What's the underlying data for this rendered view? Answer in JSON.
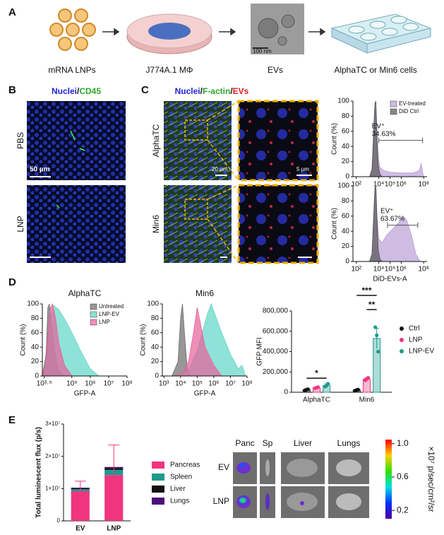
{
  "figure": {
    "panel_labels": [
      "A",
      "B",
      "C",
      "D",
      "E"
    ],
    "workflow": {
      "steps": [
        "mRNA LNPs",
        "J774A.1 MΦ",
        "EVs",
        "AlphaTC or Min6 cells"
      ],
      "em_scale": "100 nm"
    },
    "panel_b": {
      "title": [
        "Nuclei",
        "/",
        "CD45"
      ],
      "rows": [
        "PBS",
        "LNP"
      ],
      "scale": "50 µm"
    },
    "panel_c": {
      "title": [
        "Nuclei",
        "/",
        "F-actin",
        "/",
        "EVs"
      ],
      "rows": [
        "AlphaTC",
        "Min6"
      ],
      "scales": [
        "20 µm",
        "5 µm"
      ]
    },
    "panel_e_images": {
      "columns": [
        "Panc",
        "Sp",
        "Liver",
        "Lungs"
      ],
      "rows": [
        "EV",
        "LNP"
      ]
    },
    "colorbar": {
      "label": "×10⁷ p/sec/cm²/sr",
      "ylim": [
        0.1,
        1.05
      ],
      "ticks": [
        {
          "value": 1,
          "label": "1.0"
        },
        0.6,
        0.2
      ]
    }
  },
  "chart_data": [
    {
      "type": "area",
      "xscale": "log",
      "ylabel": "Count (%)",
      "legend": "upper right",
      "xlim": [
        50,
        200000000
      ],
      "xticks": [
        {
          "value": 100,
          "label": "10²"
        },
        {
          "value": 10000,
          "label": "10⁴"
        },
        {
          "value": 100000,
          "label": "10⁵"
        },
        {
          "value": 1000000,
          "label": "10⁶"
        },
        {
          "value": 100000000,
          "label": "10⁸"
        }
      ],
      "ylim": [
        0,
        100
      ],
      "yticks": [
        0,
        20,
        40,
        60,
        80,
        100
      ],
      "gate": [
        10000,
        80000000
      ],
      "gate_label": "EV⁺",
      "gate_percent": "34.63%",
      "series": [
        {
          "name": "EV-treated",
          "color": "#b9a0d6",
          "x": [
            1500,
            2500,
            3500,
            4500,
            5500,
            7000,
            9000,
            13000,
            30000,
            100000,
            1000000,
            10000000,
            40000000,
            60000000,
            80000000,
            100000000
          ],
          "values": [
            0,
            8,
            50,
            88,
            92,
            60,
            25,
            12,
            8,
            6,
            5,
            5,
            8,
            18,
            6,
            0
          ]
        },
        {
          "name": "DiD Ctrl",
          "color": "#555555",
          "x": [
            1500,
            2500,
            3500,
            4500,
            5500,
            7000,
            9000,
            13000,
            20000
          ],
          "values": [
            0,
            10,
            60,
            97,
            100,
            55,
            15,
            3,
            0
          ]
        }
      ]
    },
    {
      "type": "area",
      "xscale": "log",
      "ylabel": "Count (%)",
      "xlabel": "DiD-EVs-A",
      "xlim": [
        50,
        200000000
      ],
      "xticks": [
        {
          "value": 100,
          "label": "10²"
        },
        {
          "value": 10000,
          "label": "10⁴"
        },
        {
          "value": 100000,
          "label": "10⁵"
        },
        {
          "value": 1000000,
          "label": "10⁶"
        },
        {
          "value": 100000000,
          "label": "10⁸"
        }
      ],
      "ylim": [
        0,
        100
      ],
      "yticks": [
        0,
        20,
        40,
        60,
        80,
        100
      ],
      "gate": [
        60000,
        30000000
      ],
      "gate_label": "EV⁺",
      "gate_percent": "63.67%",
      "series": [
        {
          "name": null,
          "color": "#b9a0d6",
          "x": [
            1500,
            2500,
            3500,
            4500,
            5500,
            7000,
            10000,
            20000,
            50000,
            150000,
            500000,
            1500000,
            3000000,
            8000000,
            20000000,
            50000000
          ],
          "values": [
            0,
            10,
            55,
            95,
            100,
            60,
            30,
            25,
            35,
            42,
            50,
            60,
            55,
            35,
            10,
            0
          ]
        },
        {
          "name": null,
          "color": "#555555",
          "x": [
            1500,
            2500,
            3500,
            4500,
            5500,
            7000,
            9000,
            13000,
            20000
          ],
          "values": [
            0,
            10,
            60,
            97,
            100,
            55,
            15,
            3,
            0
          ]
        }
      ]
    },
    {
      "type": "area",
      "xscale": "log",
      "title": "AlphaTC",
      "ylabel": "Count (%)",
      "xlabel": "GFP-A",
      "legend": "upper right",
      "xlim": [
        2500,
        100000000
      ],
      "xticks": [
        {
          "value": 3162.2776601683795,
          "label": "10³·⁵"
        },
        {
          "value": 100000,
          "label": "10⁵"
        },
        {
          "value": 1000000,
          "label": "10⁶"
        },
        {
          "value": 10000000,
          "label": "10⁷"
        },
        {
          "value": 100000000,
          "label": "10⁸"
        }
      ],
      "ylim": [
        0,
        100
      ],
      "yticks": [
        0,
        20,
        40,
        60,
        80,
        100
      ],
      "series": [
        {
          "name": "Untreated",
          "color": "#6b6b6b",
          "x": [
            2500,
            4000,
            5000,
            6000,
            8000,
            12000,
            20000,
            40000
          ],
          "values": [
            0,
            30,
            95,
            100,
            70,
            30,
            8,
            0
          ]
        },
        {
          "name": "LNP-EV",
          "color": "#5fd6c6",
          "x": [
            3000,
            5000,
            7000,
            10000,
            20000,
            50000,
            100000,
            300000,
            1000000,
            3000000
          ],
          "values": [
            0,
            30,
            80,
            98,
            92,
            75,
            60,
            35,
            10,
            0
          ]
        },
        {
          "name": "LNP",
          "color": "#e8609a",
          "x": [
            2500,
            4000,
            5500,
            7000,
            9000,
            13000,
            20000,
            40000,
            100000
          ],
          "values": [
            0,
            20,
            70,
            95,
            100,
            80,
            45,
            15,
            0
          ]
        }
      ]
    },
    {
      "type": "area",
      "xscale": "log",
      "title": "Min6",
      "ylabel": "Count (%)",
      "xlabel": "GFP-A",
      "xlim": [
        800,
        100000000
      ],
      "xticks": [
        {
          "value": 1000,
          "label": "10³"
        },
        {
          "value": 10000,
          "label": "10⁴"
        },
        {
          "value": 100000,
          "label": "10⁵"
        },
        {
          "value": 1000000,
          "label": "10⁶"
        },
        {
          "value": 10000000,
          "label": "10⁷"
        },
        {
          "value": 100000000,
          "label": "10⁸"
        }
      ],
      "ylim": [
        0,
        100
      ],
      "yticks": [
        0,
        20,
        40,
        60,
        80,
        100
      ],
      "series": [
        {
          "name": null,
          "color": "#6b6b6b",
          "x": [
            3000,
            7000,
            10000,
            13000,
            17000,
            25000,
            40000
          ],
          "values": [
            0,
            20,
            80,
            100,
            60,
            10,
            0
          ]
        },
        {
          "name": null,
          "color": "#5fd6c6",
          "x": [
            8000,
            30000,
            100000,
            200000,
            400000,
            700000,
            1000000,
            3000000,
            10000000,
            30000000,
            50000000,
            80000000
          ],
          "values": [
            0,
            8,
            35,
            60,
            85,
            100,
            90,
            60,
            30,
            10,
            15,
            0
          ]
        },
        {
          "name": null,
          "color": "#e8609a",
          "x": [
            5000,
            15000,
            30000,
            60000,
            100000,
            150000,
            300000,
            1000000,
            3000000
          ],
          "values": [
            0,
            5,
            20,
            60,
            95,
            75,
            40,
            15,
            0
          ]
        }
      ]
    },
    {
      "type": "bar",
      "ylabel": "GFP MFI",
      "legend": "right",
      "categories": [
        "AlphaTC",
        "Min6"
      ],
      "ylim": [
        0,
        800000
      ],
      "yticks": [
        0,
        {
          "value": 200000,
          "label": "200,000"
        },
        {
          "value": 400000,
          "label": "400,000"
        },
        {
          "value": 600000,
          "label": "600,000"
        },
        {
          "value": 800000,
          "label": "800,000"
        }
      ],
      "annotations": [
        "*",
        "***",
        "**"
      ],
      "series": [
        {
          "name": "Ctrl",
          "color": "#111111",
          "values": [
            25000,
            22000
          ],
          "errors": [
            4000,
            3000
          ],
          "points": [
            [
              20000,
              25000,
              30000
            ],
            [
              18000,
              22000,
              26000
            ]
          ]
        },
        {
          "name": "LNP",
          "color": "#f0357f",
          "values": [
            45000,
            130000
          ],
          "errors": [
            6000,
            12000
          ],
          "points": [
            [
              40000,
              45000,
              50000
            ],
            [
              118000,
              130000,
              142000
            ]
          ]
        },
        {
          "name": "LNP-EV",
          "color": "#1e9a8c",
          "values": [
            68000,
            530000
          ],
          "errors": [
            15000,
            100000
          ],
          "points": [
            [
              55000,
              65000,
              84000
            ],
            [
              640000,
              560000,
              400000
            ]
          ]
        }
      ]
    },
    {
      "type": "stacked_bar",
      "ylabel": "Total luminescent flux (p/s)",
      "legend": "right",
      "categories": [
        "EV",
        "LNP"
      ],
      "ylim": [
        0,
        30000000
      ],
      "yticks": [
        0,
        {
          "value": 10000000,
          "label": "1×10⁷"
        },
        {
          "value": 20000000,
          "label": "2×10⁷"
        },
        {
          "value": 30000000,
          "label": "3×10⁷"
        }
      ],
      "series": [
        {
          "name": "Pancreas",
          "color": "#f0357f",
          "values": [
            9200000,
            14200000
          ],
          "errors": [
            2000000,
            6800000
          ]
        },
        {
          "name": "Spleen",
          "color": "#1e9a8c",
          "values": [
            600000,
            1600000
          ]
        },
        {
          "name": "Liver",
          "color": "#111111",
          "values": [
            300000,
            500000
          ]
        },
        {
          "name": "Lungs",
          "color": "#4b0f7a",
          "values": [
            200000,
            400000
          ]
        }
      ]
    }
  ]
}
